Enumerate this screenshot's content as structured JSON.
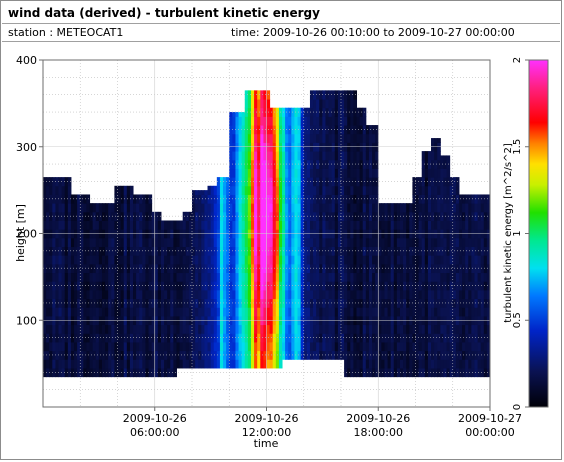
{
  "window": {
    "title": "wind data (derived) - turbulent kinetic energy",
    "station": "station : METEOCAT1",
    "time_range": "time: 2009-10-26 00:10:00 to 2009-10-27 00:00:00"
  },
  "chart_data": {
    "type": "heatmap",
    "title": "",
    "xlabel": "time",
    "ylabel": "height [m]",
    "colorbar_label": "turbulent kinetic energy [m^2/s^2]",
    "xlim_hours": [
      0,
      24
    ],
    "ylim": [
      0,
      400
    ],
    "clim": [
      0,
      2
    ],
    "x_ticks": [
      {
        "hour": 6,
        "line1": "2009-10-26",
        "line2": "06:00:00"
      },
      {
        "hour": 12,
        "line1": "2009-10-26",
        "line2": "12:00:00"
      },
      {
        "hour": 18,
        "line1": "2009-10-26",
        "line2": "18:00:00"
      },
      {
        "hour": 24,
        "line1": "2009-10-27",
        "line2": "00:00:00"
      }
    ],
    "y_ticks": [
      100,
      200,
      300,
      400
    ],
    "colorbar_ticks": [
      "0",
      "0.5",
      "1",
      "1.5",
      "2"
    ],
    "grid": true,
    "colormap": "dark-blue-cyan-green-yellow-red-magenta",
    "data_top_height_m": [
      {
        "from_h": 0.0,
        "to_h": 1.5,
        "top": 265
      },
      {
        "from_h": 1.5,
        "to_h": 2.5,
        "top": 245
      },
      {
        "from_h": 2.5,
        "to_h": 3.8,
        "top": 235
      },
      {
        "from_h": 3.8,
        "to_h": 4.8,
        "top": 255
      },
      {
        "from_h": 4.8,
        "to_h": 5.8,
        "top": 245
      },
      {
        "from_h": 5.8,
        "to_h": 6.4,
        "top": 225
      },
      {
        "from_h": 6.4,
        "to_h": 7.5,
        "top": 215
      },
      {
        "from_h": 7.5,
        "to_h": 8.0,
        "top": 225
      },
      {
        "from_h": 8.0,
        "to_h": 8.8,
        "top": 250
      },
      {
        "from_h": 8.8,
        "to_h": 9.3,
        "top": 255
      },
      {
        "from_h": 9.3,
        "to_h": 10.0,
        "top": 265
      },
      {
        "from_h": 10.0,
        "to_h": 10.8,
        "top": 340
      },
      {
        "from_h": 10.8,
        "to_h": 12.2,
        "top": 365
      },
      {
        "from_h": 12.2,
        "to_h": 14.3,
        "top": 345
      },
      {
        "from_h": 14.3,
        "to_h": 16.8,
        "top": 365
      },
      {
        "from_h": 16.8,
        "to_h": 17.3,
        "top": 345
      },
      {
        "from_h": 17.3,
        "to_h": 18.0,
        "top": 325
      },
      {
        "from_h": 18.0,
        "to_h": 19.8,
        "top": 235
      },
      {
        "from_h": 19.8,
        "to_h": 20.3,
        "top": 265
      },
      {
        "from_h": 20.3,
        "to_h": 20.8,
        "top": 295
      },
      {
        "from_h": 20.8,
        "to_h": 21.4,
        "top": 310
      },
      {
        "from_h": 21.4,
        "to_h": 21.9,
        "top": 290
      },
      {
        "from_h": 21.9,
        "to_h": 22.3,
        "top": 265
      },
      {
        "from_h": 22.3,
        "to_h": 24.0,
        "top": 245
      }
    ],
    "data_bottom_height_m": [
      {
        "from_h": 0.0,
        "to_h": 7.2,
        "bottom": 35
      },
      {
        "from_h": 7.2,
        "to_h": 12.8,
        "bottom": 45
      },
      {
        "from_h": 12.8,
        "to_h": 16.1,
        "bottom": 55
      },
      {
        "from_h": 16.1,
        "to_h": 24.0,
        "bottom": 35
      }
    ],
    "tke_peak": {
      "center_hour": 11.9,
      "max_value": 1.9,
      "band_hours": [
        8.0,
        14.3
      ]
    }
  }
}
